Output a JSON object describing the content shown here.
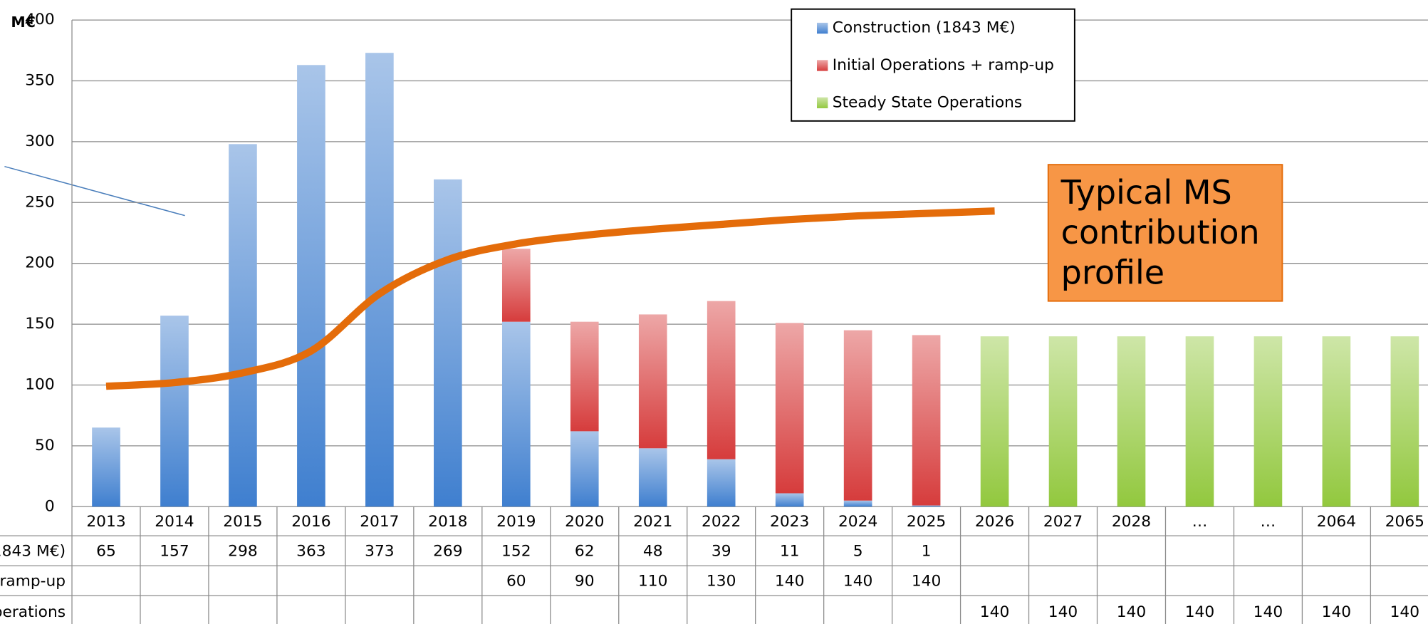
{
  "chart_data": {
    "type": "bar",
    "y_label": "M€",
    "categories": [
      "2013",
      "2014",
      "2015",
      "2016",
      "2017",
      "2018",
      "2019",
      "2020",
      "2021",
      "2022",
      "2023",
      "2024",
      "2025",
      "2026",
      "2027",
      "2028",
      "…",
      "…",
      "2064",
      "2065"
    ],
    "series": [
      {
        "name": "Construction (1843 M€)",
        "color": "#3f7fcf",
        "type": "bar",
        "stack": "a",
        "values": [
          65,
          157,
          298,
          363,
          373,
          269,
          152,
          62,
          48,
          39,
          11,
          5,
          1,
          null,
          null,
          null,
          null,
          null,
          null,
          null
        ]
      },
      {
        "name": "Initial Operations + ramp-up",
        "color": "#d63c3c",
        "type": "bar",
        "stack": "a",
        "values": [
          null,
          null,
          null,
          null,
          null,
          null,
          60,
          90,
          110,
          130,
          140,
          140,
          140,
          null,
          null,
          null,
          null,
          null,
          null,
          null
        ]
      },
      {
        "name": "Steady State Operations",
        "color": "#92c83e",
        "type": "bar",
        "stack": "a",
        "values": [
          null,
          null,
          null,
          null,
          null,
          null,
          null,
          null,
          null,
          null,
          null,
          null,
          null,
          140,
          140,
          140,
          140,
          140,
          140,
          140
        ]
      },
      {
        "name": "Typical MS contribution profile",
        "color": "#e46c0a",
        "type": "line",
        "values": [
          99,
          102,
          110,
          128,
          175,
          203,
          216,
          223,
          228,
          232,
          236,
          239,
          241,
          243,
          null,
          null,
          null,
          null,
          null,
          null
        ]
      }
    ],
    "ylim": [
      0,
      400
    ],
    "yticks": [
      0,
      50,
      100,
      150,
      200,
      250,
      300,
      350,
      400
    ],
    "grid": true
  }
}
